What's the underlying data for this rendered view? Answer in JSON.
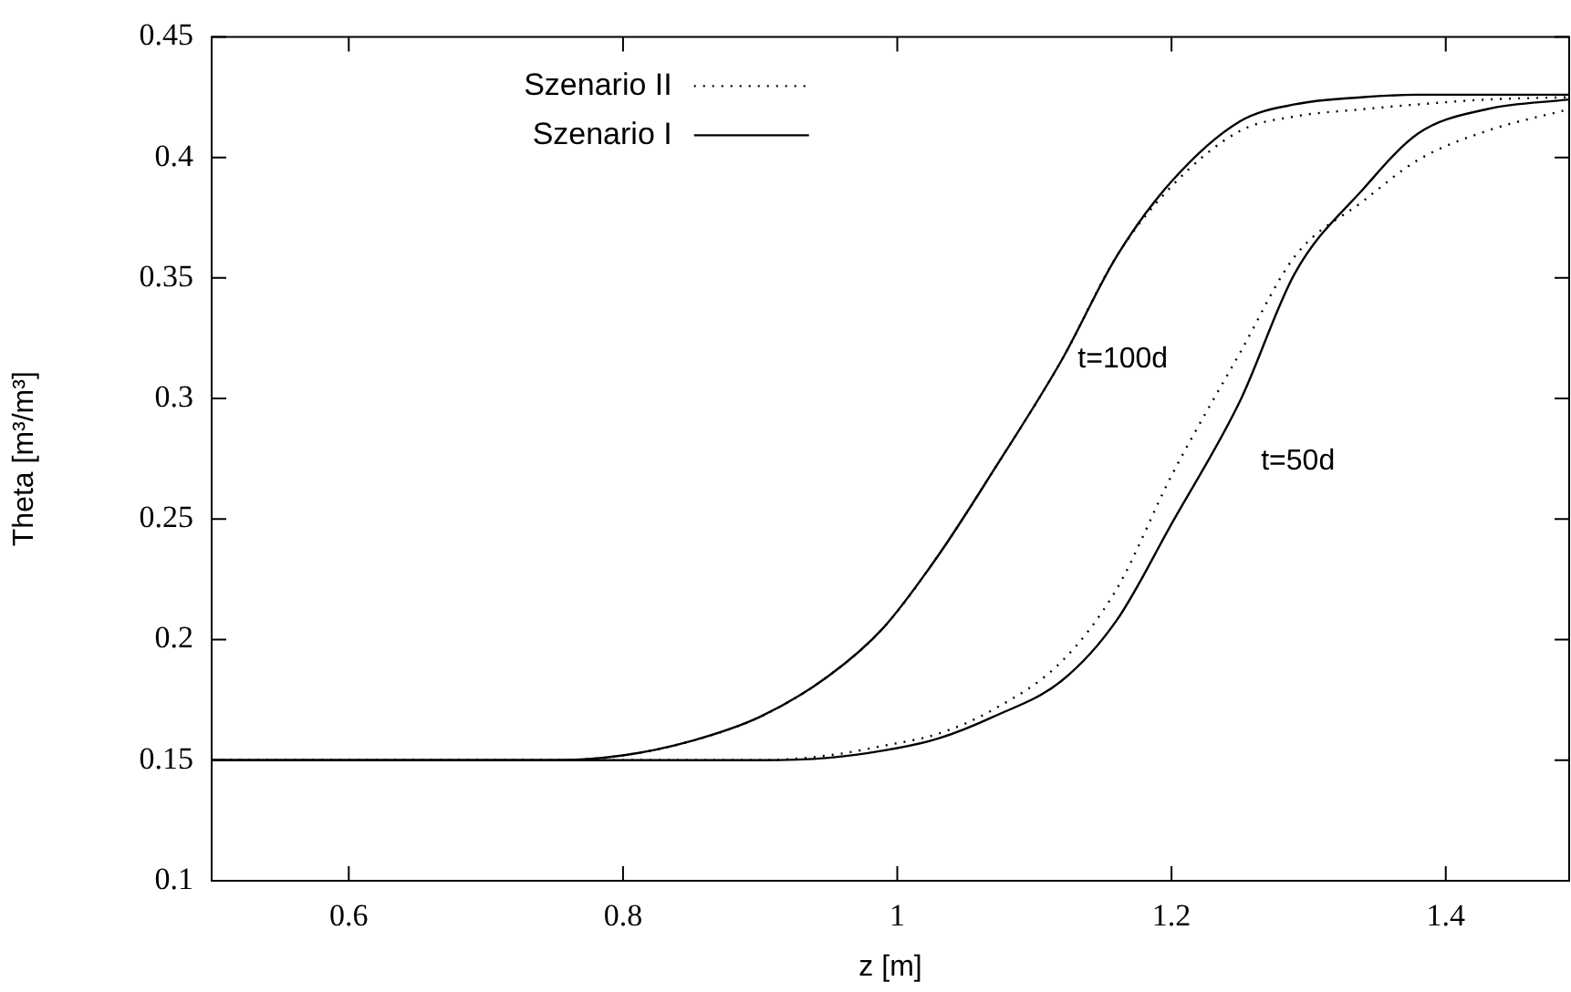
{
  "chart_data": {
    "type": "line",
    "xlabel": "z [m]",
    "ylabel": "Theta [m³/m³]",
    "x": [
      0.5,
      0.6,
      0.7,
      0.75,
      0.8,
      0.85,
      0.9,
      0.95,
      0.99,
      1.03,
      1.07,
      1.12,
      1.16,
      1.2,
      1.25,
      1.29,
      1.34,
      1.38,
      1.43,
      1.49
    ],
    "series": [
      {
        "name": "Szenario II",
        "color": "#000000",
        "line_style": "dotted",
        "values": [
          0.15,
          0.15,
          0.15,
          0.15,
          0.152,
          0.158,
          0.168,
          0.185,
          0.205,
          0.235,
          0.27,
          0.316,
          0.359,
          0.388,
          0.411,
          0.417,
          0.42,
          0.422,
          0.424,
          0.425
        ]
      },
      {
        "color": "#000000",
        "line_style": "dotted",
        "values": [
          0.15,
          0.15,
          0.15,
          0.15,
          0.15,
          0.15,
          0.15,
          0.152,
          0.156,
          0.161,
          0.171,
          0.191,
          0.221,
          0.268,
          0.319,
          0.359,
          0.382,
          0.399,
          0.411,
          0.42
        ]
      },
      {
        "name": "Szenario I",
        "color": "#000000",
        "line_style": "solid",
        "values": [
          0.15,
          0.15,
          0.15,
          0.15,
          0.152,
          0.158,
          0.168,
          0.185,
          0.205,
          0.235,
          0.27,
          0.316,
          0.359,
          0.39,
          0.415,
          0.422,
          0.425,
          0.426,
          0.426,
          0.426
        ]
      },
      {
        "color": "#000000",
        "line_style": "solid",
        "values": [
          0.15,
          0.15,
          0.15,
          0.15,
          0.15,
          0.15,
          0.15,
          0.151,
          0.154,
          0.159,
          0.168,
          0.183,
          0.208,
          0.248,
          0.299,
          0.352,
          0.387,
          0.41,
          0.42,
          0.424
        ]
      }
    ],
    "annotations": [
      "t=100d",
      "t=50d"
    ],
    "xlim": [
      0.5,
      1.49
    ],
    "xticks": [
      0.6,
      0.8,
      1,
      1.2,
      1.4
    ],
    "ylim": [
      0.1,
      0.45
    ],
    "yticks": [
      0.1,
      0.15,
      0.2,
      0.25,
      0.3,
      0.35,
      0.4,
      0.45
    ],
    "grid": false,
    "legend": "top",
    "marker": "none"
  }
}
